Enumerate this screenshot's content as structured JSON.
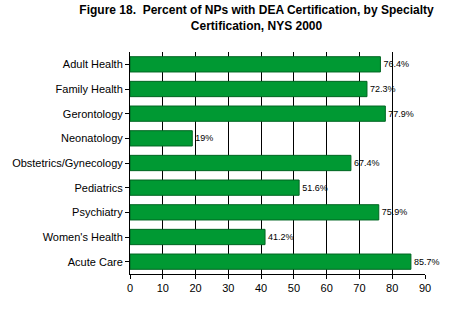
{
  "chart_data": {
    "type": "bar",
    "orientation": "horizontal",
    "title": "Figure 18.  Percent of NPs with DEA Certification, by Specialty\nCertification, NYS 2000",
    "categories": [
      "Adult Health",
      "Family Health",
      "Gerontology",
      "Neonatology",
      "Obstetrics/Gynecology",
      "Pediatrics",
      "Psychiatry",
      "Women's Health",
      "Acute Care"
    ],
    "values": [
      76.4,
      72.3,
      77.9,
      19,
      67.4,
      51.6,
      75.9,
      41.2,
      85.7
    ],
    "value_labels": [
      "76.4%",
      "72.3%",
      "77.9%",
      "19%",
      "67.4%",
      "51.6%",
      "75.9%",
      "41.2%",
      "85.7%"
    ],
    "data_labels": true,
    "color": "#009933",
    "xlim": [
      0,
      90
    ],
    "xticks": [
      0,
      10,
      20,
      30,
      40,
      50,
      60,
      70,
      80,
      90
    ],
    "grid": true
  }
}
